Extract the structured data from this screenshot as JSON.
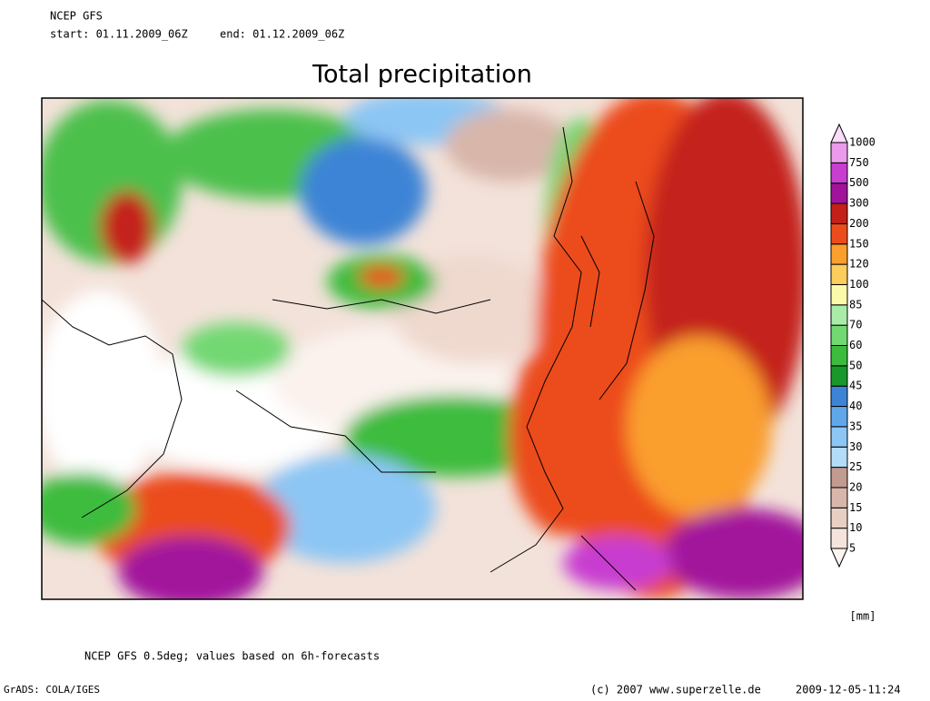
{
  "header": {
    "model": "NCEP GFS",
    "start": "start: 01.11.2009_06Z",
    "end": "end: 01.12.2009_06Z"
  },
  "title": "Total precipitation",
  "colorbar": {
    "levels": [
      5,
      10,
      15,
      20,
      25,
      30,
      35,
      40,
      45,
      50,
      60,
      70,
      85,
      100,
      120,
      150,
      200,
      300,
      500,
      750,
      1000
    ],
    "colors": [
      "#fdf4ef",
      "#f5e4dc",
      "#e8cfc4",
      "#d8b6aa",
      "#c19a90",
      "#b2dcf8",
      "#8cc6f4",
      "#5ea8ea",
      "#3e84d6",
      "#18982a",
      "#3cbc3c",
      "#72d872",
      "#a8eca8",
      "#fafaaa",
      "#fccc5c",
      "#fa9e2e",
      "#ec4c1c",
      "#c4201a",
      "#a2139c",
      "#c83ed0",
      "#ec9aec",
      "#fcdcfc"
    ],
    "unit": "[mm]"
  },
  "footer": {
    "note": "NCEP GFS 0.5deg; values based on 6h-forecasts",
    "software": "GrADS: COLA/IGES",
    "copyright": "(c) 2007 www.superzelle.de",
    "timestamp": "2009-12-05-11:24"
  }
}
